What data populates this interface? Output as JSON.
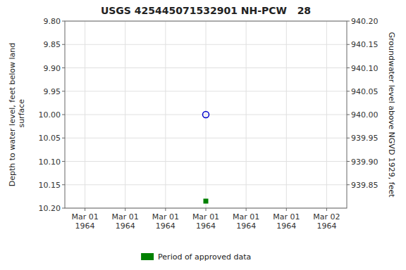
{
  "chart_data": {
    "type": "scatter",
    "title": "USGS 425445071532901 NH-PCW   28",
    "y_label": "Depth to water level, feet below land\n surface",
    "y2_label": "Groundwater level above NGVD 1929, feet",
    "categories": [
      "Mar 01\n1964",
      "Mar 01\n1964",
      "Mar 01\n1964",
      "Mar 01\n1964",
      "Mar 01\n1964",
      "Mar 01\n1964",
      "Mar 02\n1964"
    ],
    "series": [
      {
        "color": "#0000cc",
        "marker": "circle",
        "values": [
          null,
          null,
          null,
          10.0,
          null,
          null,
          null
        ]
      },
      {
        "name": "Period of approved data",
        "color": "#008000",
        "marker": "square",
        "values": [
          null,
          null,
          null,
          10.185,
          null,
          null,
          null
        ]
      }
    ],
    "ylim": [
      10.2,
      9.8
    ],
    "yticks": [
      {
        "value": 9.8,
        "label": "9.80"
      },
      9.85,
      {
        "value": 9.9,
        "label": "9.90"
      },
      9.95,
      {
        "value": 10.0,
        "label": "10.00"
      },
      10.05,
      {
        "value": 10.1,
        "label": "10.10"
      },
      10.15,
      {
        "value": 10.2,
        "label": "10.20"
      }
    ],
    "y2lim": [
      939.8,
      940.2
    ],
    "y2ticks": [
      {
        "value": 940.2,
        "label": "940.20"
      },
      940.15,
      {
        "value": 940.1,
        "label": "940.10"
      },
      940.05,
      {
        "value": 940.0,
        "label": "940.00"
      },
      939.95,
      {
        "value": 939.9,
        "label": "939.90"
      },
      939.85
    ],
    "grid": true,
    "legend": "bottom"
  }
}
